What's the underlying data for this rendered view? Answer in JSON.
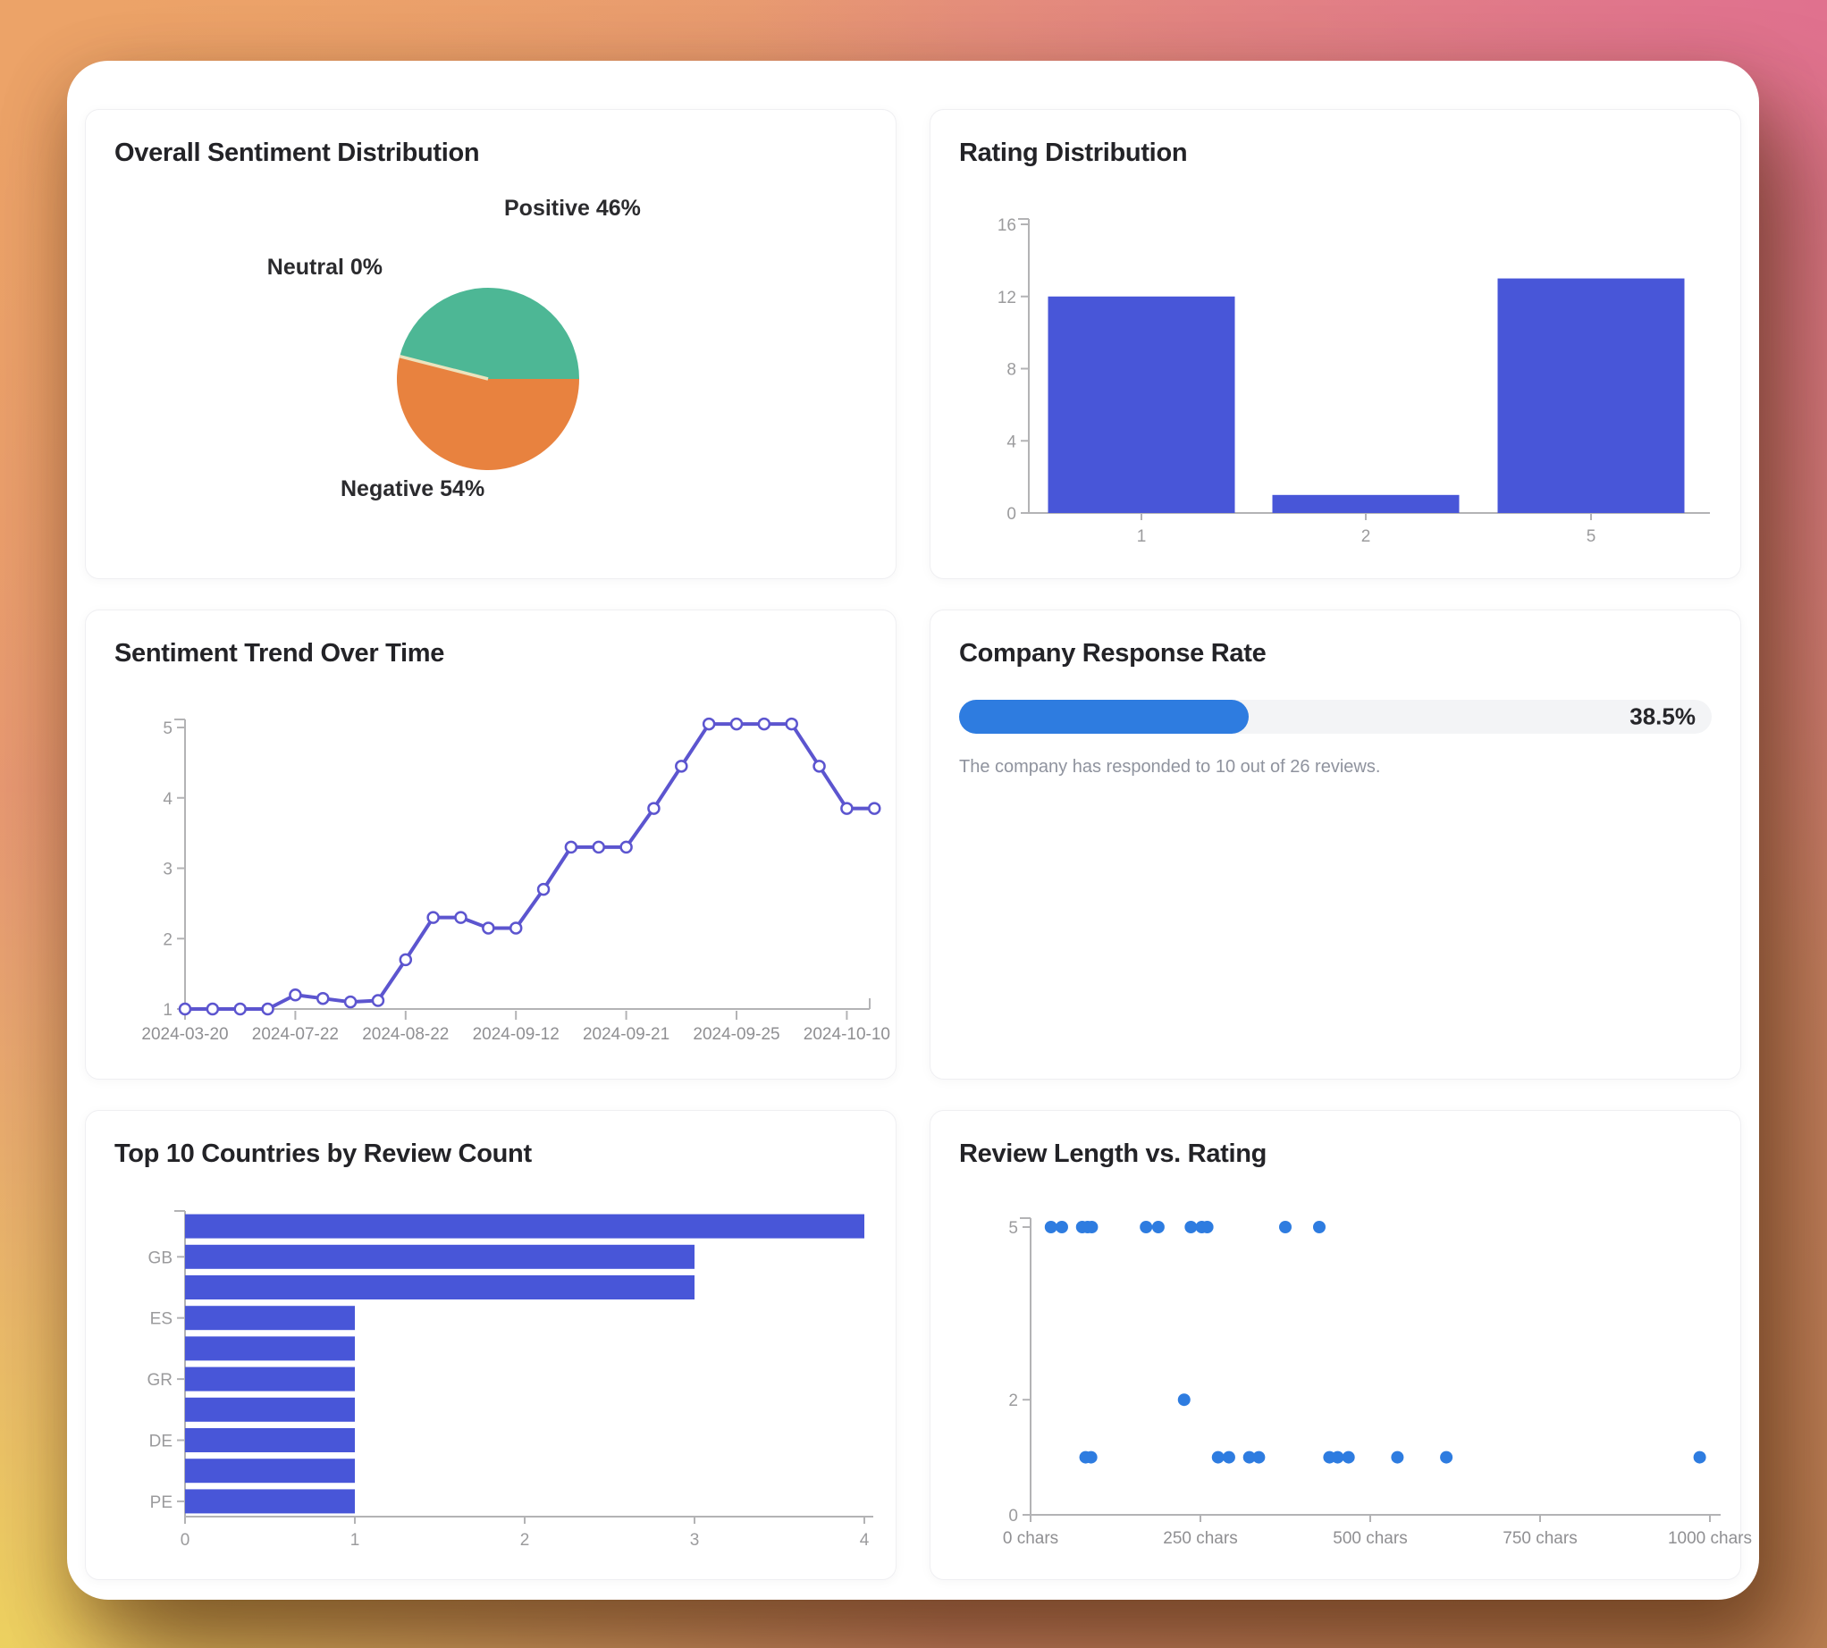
{
  "page": {
    "background": {
      "top_left": "#eca368",
      "top_right": "#e0708f",
      "bottom_left": "#eed45f",
      "panel": "#ffffff"
    }
  },
  "chart_data": [
    {
      "type": "pie",
      "title": "Overall Sentiment Distribution",
      "slices": [
        {
          "label": "Positive",
          "pct": 46,
          "display": "Positive 46%",
          "color": "#4db795"
        },
        {
          "label": "Neutral",
          "pct": 0,
          "display": "Neutral 0%",
          "color": "#ece3bd"
        },
        {
          "label": "Negative",
          "pct": 54,
          "display": "Negative 54%",
          "color": "#e8823f"
        }
      ]
    },
    {
      "type": "bar",
      "title": "Rating Distribution",
      "categories": [
        "1",
        "2",
        "5"
      ],
      "values": [
        12,
        1,
        13
      ],
      "ylim": [
        0,
        16
      ],
      "yticks": [
        0,
        4,
        8,
        12,
        16
      ],
      "bar_color": "#4856d8"
    },
    {
      "type": "line",
      "title": "Sentiment Trend Over Time",
      "values": [
        1,
        1,
        1,
        1,
        1.2,
        1.15,
        1.1,
        1.12,
        1.7,
        2.3,
        2.3,
        2.15,
        2.15,
        2.7,
        3.3,
        3.3,
        3.3,
        3.85,
        4.45,
        5.05,
        5.05,
        5.05,
        5.05,
        4.45,
        3.85,
        3.85
      ],
      "x_tick_indices": [
        0,
        4,
        8,
        12,
        16,
        20,
        24
      ],
      "x_tick_labels": [
        "2024-03-20",
        "2024-07-22",
        "2024-08-22",
        "2024-09-12",
        "2024-09-21",
        "2024-09-25",
        "2024-10-10"
      ],
      "yticks": [
        1,
        2,
        3,
        4,
        5
      ],
      "ylim": [
        1,
        5.1
      ],
      "line_color": "#5c55cf"
    },
    {
      "type": "progress",
      "title": "Company Response Rate",
      "value_pct": 38.5,
      "value_label": "38.5%",
      "description": "The company has responded to 10 out of 26 reviews.",
      "fill_color": "#2e7ce0",
      "track_color": "#f3f4f6"
    },
    {
      "type": "hbar",
      "title": "Top 10 Countries by Review Count",
      "categories": [
        "",
        "GB",
        "",
        "ES",
        "",
        "GR",
        "",
        "DE",
        "",
        "PE"
      ],
      "values": [
        4,
        3,
        3,
        1,
        1,
        1,
        1,
        1,
        1,
        1
      ],
      "xticks": [
        0,
        1,
        2,
        3,
        4
      ],
      "xlim": [
        0,
        4
      ],
      "bar_color": "#4856d8"
    },
    {
      "type": "scatter",
      "title": "Review Length vs. Rating",
      "points": [
        [
          30,
          5
        ],
        [
          46,
          5
        ],
        [
          76,
          5
        ],
        [
          84,
          5
        ],
        [
          90,
          5
        ],
        [
          170,
          5
        ],
        [
          188,
          5
        ],
        [
          236,
          5
        ],
        [
          252,
          5
        ],
        [
          260,
          5
        ],
        [
          375,
          5
        ],
        [
          425,
          5
        ],
        [
          226,
          2
        ],
        [
          81,
          1
        ],
        [
          89,
          1
        ],
        [
          276,
          1
        ],
        [
          292,
          1
        ],
        [
          322,
          1
        ],
        [
          336,
          1
        ],
        [
          440,
          1
        ],
        [
          452,
          1
        ],
        [
          468,
          1
        ],
        [
          540,
          1
        ],
        [
          612,
          1
        ],
        [
          985,
          1
        ]
      ],
      "xticks": [
        0,
        250,
        500,
        750,
        1000
      ],
      "x_tick_labels": [
        "0 chars",
        "250 chars",
        "500 chars",
        "750 chars",
        "1000 chars"
      ],
      "yticks": [
        0,
        2,
        5
      ],
      "xlim": [
        0,
        1000
      ],
      "ylim": [
        0,
        5.2
      ],
      "dot_color": "#2e7ce0"
    }
  ]
}
